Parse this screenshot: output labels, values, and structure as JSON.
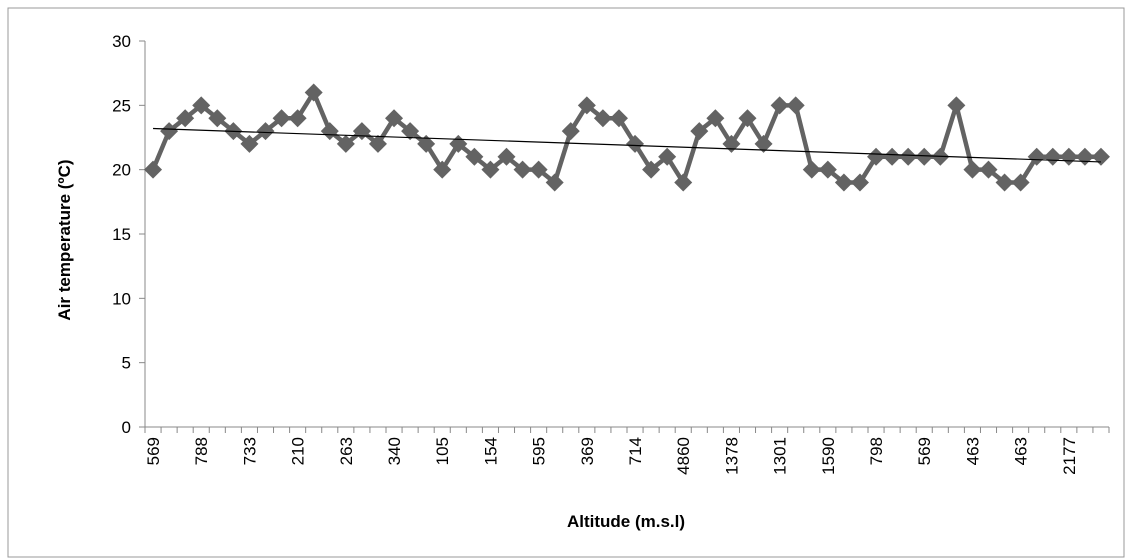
{
  "chart_data": {
    "type": "line",
    "x_label": "Altitude (m.s.l)",
    "y_label": "Air temperature (ºC)",
    "categories": [
      "569",
      null,
      null,
      "788",
      null,
      null,
      "733",
      null,
      null,
      "210",
      null,
      null,
      "263",
      null,
      null,
      "340",
      null,
      null,
      "105",
      null,
      null,
      "154",
      null,
      null,
      "595",
      null,
      null,
      "369",
      null,
      null,
      "714",
      null,
      null,
      "4860",
      null,
      null,
      "1378",
      null,
      null,
      "1301",
      null,
      null,
      "1590",
      null,
      null,
      "798",
      null,
      null,
      "569",
      null,
      null,
      "463",
      null,
      null,
      "463",
      null,
      null,
      "2177",
      null,
      null
    ],
    "series": [
      {
        "color": "#636363",
        "values": [
          20,
          23,
          24,
          25,
          24,
          23,
          22,
          23,
          24,
          24,
          26,
          23,
          22,
          23,
          22,
          24,
          23,
          22,
          20,
          22,
          21,
          20,
          21,
          20,
          20,
          19,
          23,
          25,
          24,
          24,
          22,
          20,
          21,
          19,
          23,
          24,
          22,
          24,
          22,
          25,
          25,
          20,
          20,
          19,
          19,
          21,
          21,
          21,
          21,
          21,
          25,
          20,
          20,
          19,
          19,
          21,
          21,
          21,
          21,
          21
        ]
      }
    ],
    "trendline": [
      23.2,
      20.6
    ],
    "ylim": [
      0,
      30
    ],
    "yticks": [
      0,
      5,
      10,
      15,
      20,
      25,
      30
    ]
  }
}
